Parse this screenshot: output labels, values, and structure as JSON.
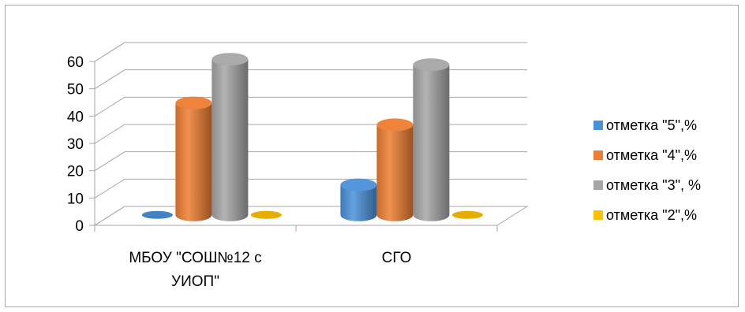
{
  "chart_data": {
    "type": "bar",
    "style": "3d-cylinder",
    "categories": [
      [
        "МБОУ \"СОШ№12 с",
        "УИОП\""
      ],
      [
        "СГО"
      ]
    ],
    "series": [
      {
        "name": "отметка \"5\",%",
        "values": [
          0,
          11
        ],
        "color": "#4a90d9"
      },
      {
        "name": "отметка \"4\",%",
        "values": [
          41,
          33
        ],
        "color": "#ed7d31"
      },
      {
        "name": "отметка \"3\", %",
        "values": [
          57,
          55
        ],
        "color": "#a5a5a5"
      },
      {
        "name": "отметка \"2\",%",
        "values": [
          0,
          0
        ],
        "color": "#ffc000"
      }
    ],
    "yticks": [
      0,
      10,
      20,
      30,
      40,
      50,
      60
    ],
    "ylim": [
      0,
      60
    ],
    "grid": true,
    "legend": "right"
  }
}
